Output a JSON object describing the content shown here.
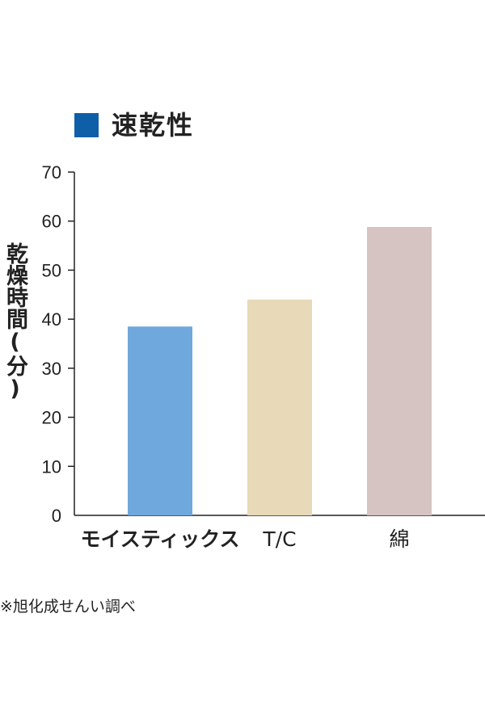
{
  "chart_data": {
    "type": "bar",
    "categories": [
      "モイスティックス",
      "T/C",
      "綿"
    ],
    "values": [
      38.5,
      44,
      58.8
    ],
    "colors": [
      "#6fa8dc",
      "#e8d9b8",
      "#d6c4c2"
    ],
    "legend_color": "#0f5fa8",
    "title": "速乾性",
    "xlabel": "",
    "ylabel": "乾燥時間(分)",
    "ylim": [
      0,
      70
    ],
    "yticks": [
      0,
      10,
      20,
      30,
      40,
      50,
      60,
      70
    ],
    "grid": false,
    "legend_position": "top-left"
  },
  "footnote": "※旭化成せんい調べ"
}
